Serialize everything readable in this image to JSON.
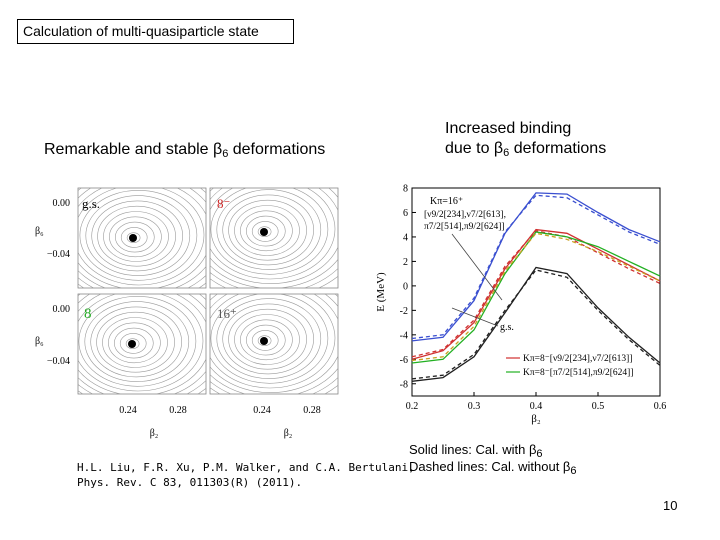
{
  "slide": {
    "title": "Calculation of multi-quasiparticle state",
    "left_heading": {
      "text": "Remarkable and stable β",
      "sub": "6",
      "tail": " deformations"
    },
    "right_heading": {
      "line1": "Increased binding",
      "line2": "due to β",
      "sub": "6",
      "tail": " deformations"
    },
    "citation": {
      "line1": "H.L. Liu, F.R. Xu, P.M. Walker, and C.A. Bertulani,",
      "line2": "Phys. Rev. C 83, 011303(R) (2011)."
    },
    "notes": {
      "solid": "Solid lines: Cal. with β",
      "dashed": "Dashed lines: Cal. without β",
      "sub": "6"
    },
    "page_number": "10"
  },
  "contour_figure": {
    "panels": [
      {
        "label": "g.s."
      },
      {
        "label": "8⁻"
      },
      {
        "label": "8"
      },
      {
        "label": "16⁺"
      }
    ],
    "y_ticks": [
      "0.00",
      "−0.04"
    ],
    "x_ticks": [
      "0.24",
      "0.28"
    ],
    "y_axis_label": "β₆",
    "x_axis_label": "β₂",
    "colors": {
      "panel_8_label": "#22aa22",
      "panel_8minus_label": "#cc2222",
      "minimum_dot": "#000000"
    }
  },
  "chart_data": {
    "type": "line",
    "xlabel": "β₂",
    "ylabel": "E (MeV)",
    "xlim": [
      0.2,
      0.6
    ],
    "ylim": [
      -9,
      8
    ],
    "x_ticks": [
      "0.2",
      "0.3",
      "0.4",
      "0.5",
      "0.6"
    ],
    "y_ticks": [
      "8",
      "6",
      "4",
      "2",
      "0",
      "-2",
      "-4",
      "-6",
      "-8"
    ],
    "x": [
      0.2,
      0.25,
      0.3,
      0.35,
      0.4,
      0.45,
      0.5,
      0.55,
      0.6
    ],
    "series": [
      {
        "name": "Kπ=16⁺ with β6",
        "style": "solid",
        "color": "#3a4fd0",
        "values": [
          -4.5,
          -4.2,
          -1.2,
          4.3,
          7.6,
          7.5,
          6.0,
          4.6,
          3.6
        ]
      },
      {
        "name": "Kπ=16⁺ without β6",
        "style": "dashed",
        "color": "#3a4fd0",
        "values": [
          -4.3,
          -4.0,
          -1.0,
          4.4,
          7.4,
          7.2,
          5.8,
          4.4,
          3.4
        ]
      },
      {
        "name": "Kπ=8⁻ [ν9/2[234],ν7/2[613]] with β6",
        "style": "solid",
        "color": "#d03030",
        "values": [
          -6.0,
          -5.3,
          -3.0,
          1.4,
          4.6,
          4.3,
          3.0,
          1.7,
          0.4
        ]
      },
      {
        "name": "Kπ=8⁻ [ν9/2[234],ν7/2[613]] without β6",
        "style": "dashed",
        "color": "#d03030",
        "values": [
          -5.8,
          -5.2,
          -2.8,
          1.6,
          4.5,
          4.0,
          2.7,
          1.4,
          0.2
        ]
      },
      {
        "name": "Kπ=8⁻ [π7/2[514],π9/2[624]] with β6",
        "style": "solid",
        "color": "#22b022",
        "values": [
          -6.3,
          -6.0,
          -3.6,
          1.0,
          4.4,
          4.0,
          3.2,
          2.0,
          0.8
        ]
      },
      {
        "name": "Kπ=8⁻ [π7/2[514],π9/2[624]] without β6",
        "style": "dashed",
        "color": "#c8a020",
        "values": [
          -6.1,
          -5.8,
          -3.3,
          1.2,
          4.3,
          3.8,
          2.8,
          1.6,
          0.4
        ]
      },
      {
        "name": "g.s. with β6",
        "style": "solid",
        "color": "#202020",
        "values": [
          -7.8,
          -7.5,
          -5.8,
          -2.2,
          1.5,
          1.0,
          -1.8,
          -4.2,
          -6.3
        ]
      },
      {
        "name": "g.s. without β6",
        "style": "dashed",
        "color": "#202020",
        "values": [
          -7.6,
          -7.3,
          -5.6,
          -2.0,
          1.3,
          0.7,
          -2.0,
          -4.4,
          -6.5
        ]
      }
    ],
    "annotations": [
      {
        "text": "Kπ=16⁺",
        "line2": "[ν9/2[234],ν7/2[613],",
        "line3": "π7/2[514],π9/2[624]]"
      },
      {
        "text": "g.s."
      }
    ],
    "legend": [
      {
        "label": "Kπ=8⁻[ν9/2[234],ν7/2[613]]",
        "color": "#d03030"
      },
      {
        "label": "Kπ=8⁻[π7/2[514],π9/2[624]]",
        "color": "#22b022"
      }
    ]
  }
}
